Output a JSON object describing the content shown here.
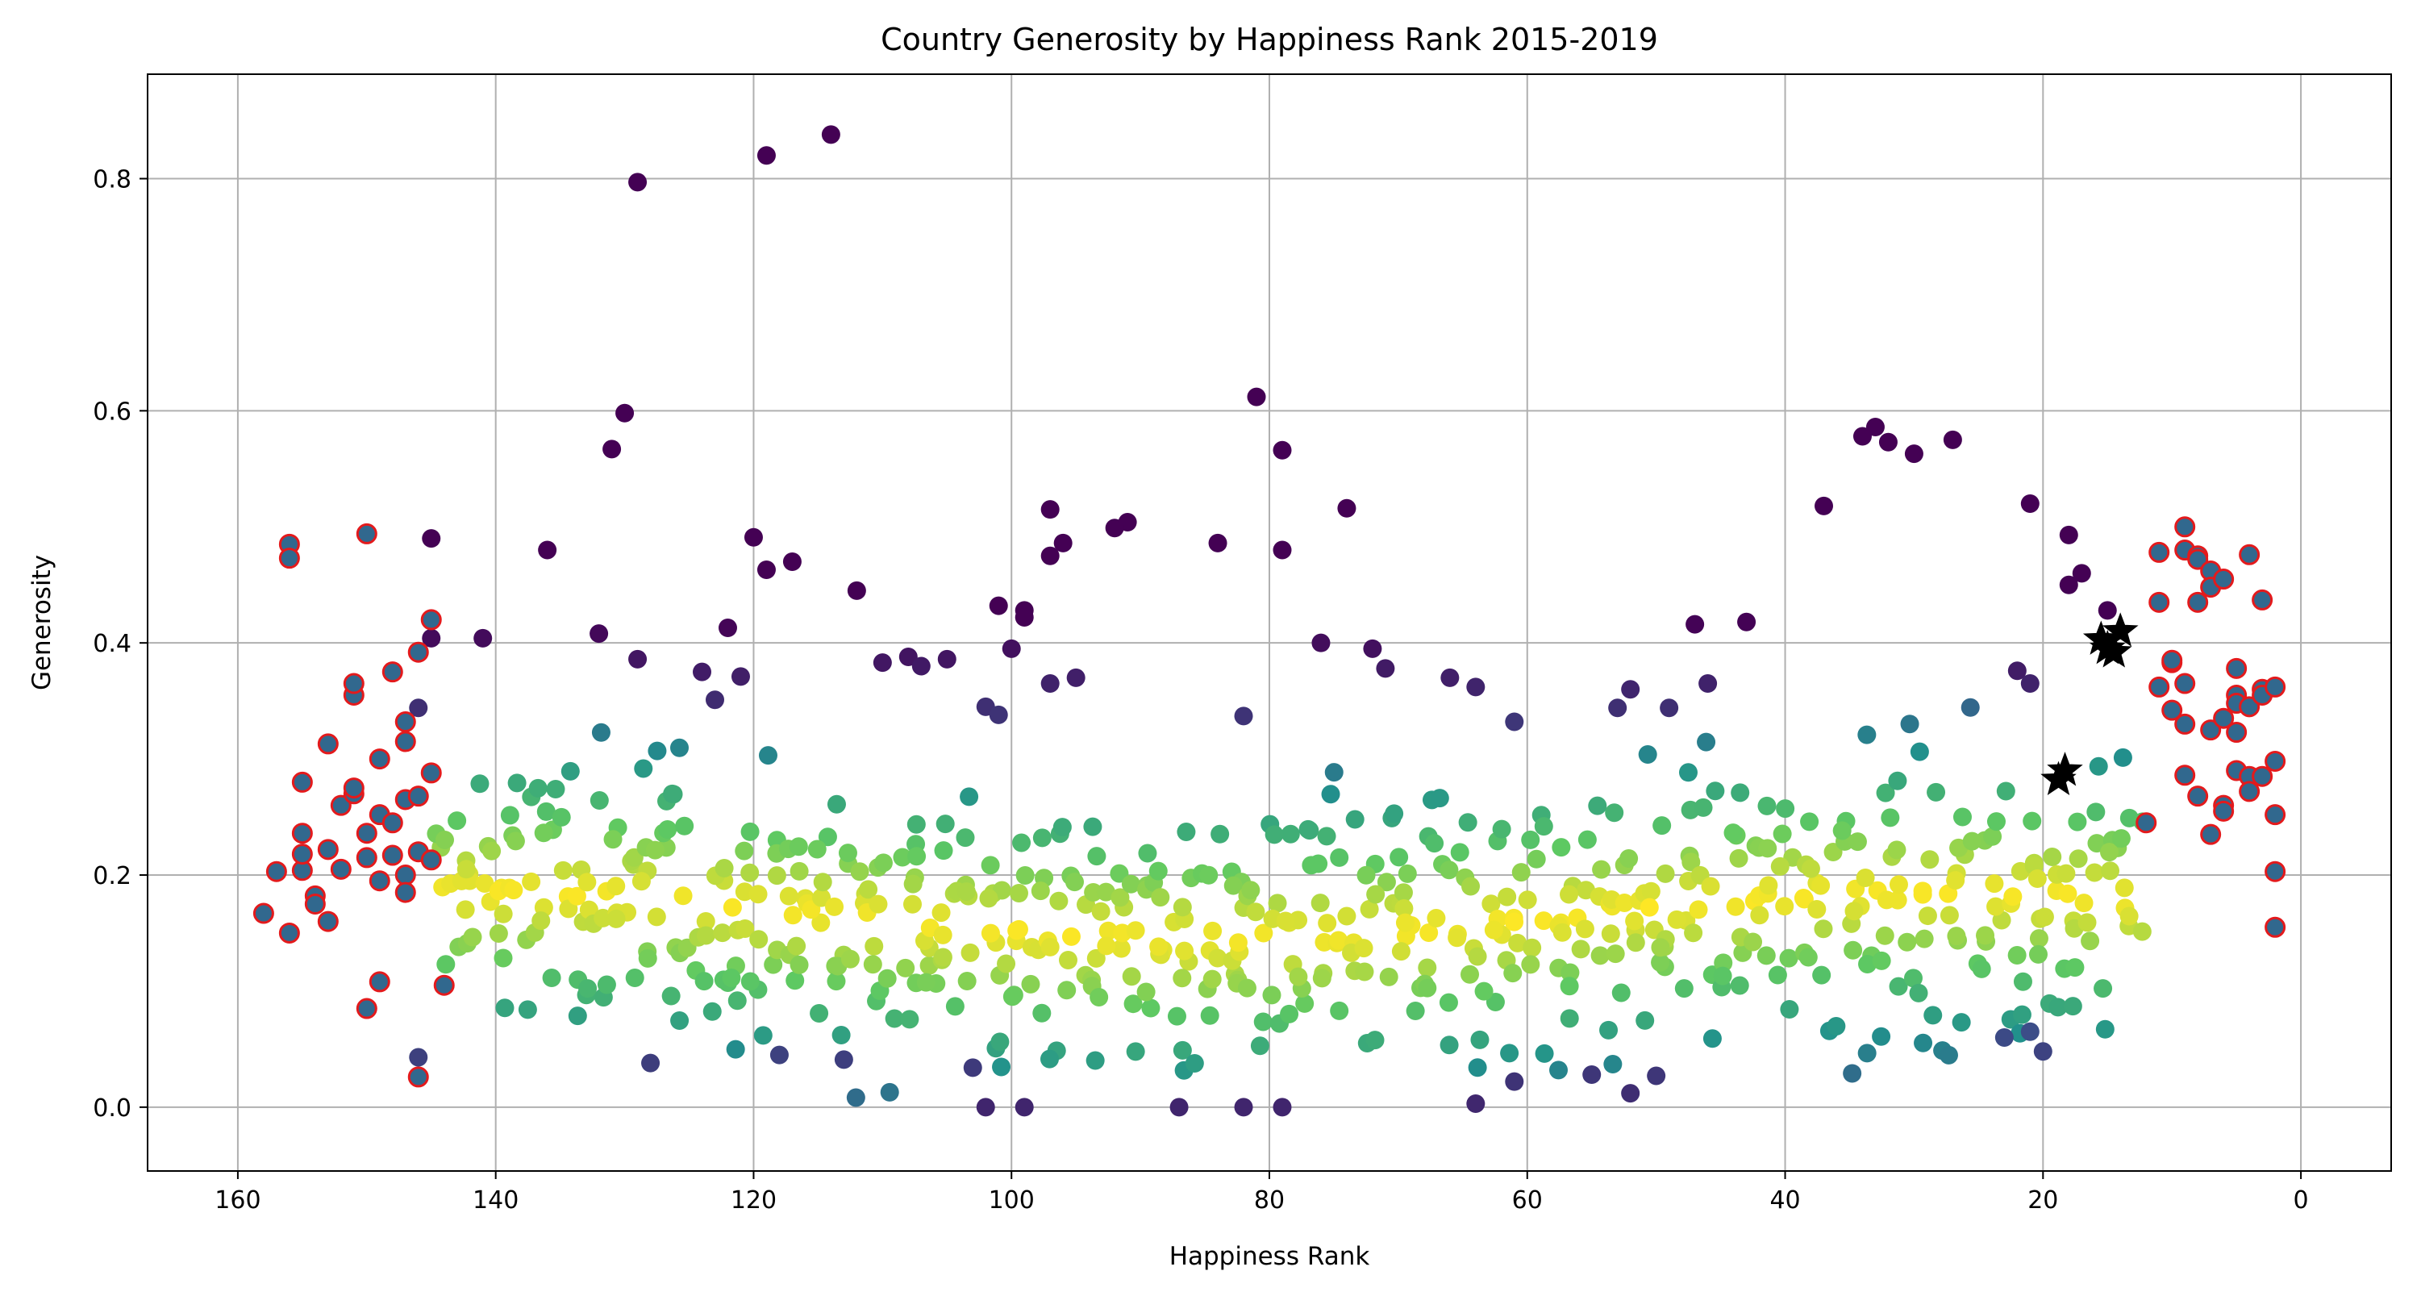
{
  "chart_data": {
    "type": "scatter",
    "title": "Country Generosity by Happiness Rank 2015-2019",
    "xlabel": "Happiness Rank",
    "ylabel": "Generosity",
    "xlim": [
      167,
      -7
    ],
    "ylim": [
      -0.055,
      0.89
    ],
    "x_inverted": true,
    "grid": true,
    "xticks": [
      {
        "value": 160,
        "label": "160"
      },
      {
        "value": 140,
        "label": "140"
      },
      {
        "value": 120,
        "label": "120"
      },
      {
        "value": 100,
        "label": "100"
      },
      {
        "value": 80,
        "label": "80"
      },
      {
        "value": 60,
        "label": "60"
      },
      {
        "value": 40,
        "label": "40"
      },
      {
        "value": 20,
        "label": "20"
      },
      {
        "value": 0,
        "label": "0"
      }
    ],
    "yticks": [
      {
        "value": 0.0,
        "label": "0.0"
      },
      {
        "value": 0.2,
        "label": "0.2"
      },
      {
        "value": 0.4,
        "label": "0.4"
      },
      {
        "value": 0.6,
        "label": "0.6"
      },
      {
        "value": 0.8,
        "label": "0.8"
      }
    ],
    "colors": {
      "colormap": [
        "#440154",
        "#3b528b",
        "#21918c",
        "#5ec962",
        "#fde725"
      ],
      "highlight_edge": "#e31a1c",
      "star_fill": "#000000",
      "grid": "#b0b0b0"
    },
    "highlighted_edge_points": [
      [
        158,
        0.167
      ],
      [
        157,
        0.203
      ],
      [
        156,
        0.485
      ],
      [
        156,
        0.473
      ],
      [
        156,
        0.15
      ],
      [
        155,
        0.204
      ],
      [
        155,
        0.236
      ],
      [
        155,
        0.28
      ],
      [
        155,
        0.218
      ],
      [
        154,
        0.182
      ],
      [
        154,
        0.175
      ],
      [
        153,
        0.222
      ],
      [
        153,
        0.313
      ],
      [
        153,
        0.16
      ],
      [
        152,
        0.205
      ],
      [
        152,
        0.26
      ],
      [
        151,
        0.27
      ],
      [
        151,
        0.275
      ],
      [
        151,
        0.355
      ],
      [
        151,
        0.365
      ],
      [
        150,
        0.215
      ],
      [
        150,
        0.236
      ],
      [
        150,
        0.494
      ],
      [
        150,
        0.085
      ],
      [
        149,
        0.195
      ],
      [
        149,
        0.3
      ],
      [
        149,
        0.252
      ],
      [
        149,
        0.108
      ],
      [
        148,
        0.245
      ],
      [
        148,
        0.375
      ],
      [
        148,
        0.217
      ],
      [
        147,
        0.2
      ],
      [
        147,
        0.265
      ],
      [
        147,
        0.332
      ],
      [
        147,
        0.315
      ],
      [
        147,
        0.185
      ],
      [
        146,
        0.268
      ],
      [
        146,
        0.22
      ],
      [
        146,
        0.392
      ],
      [
        146,
        0.026
      ],
      [
        145,
        0.288
      ],
      [
        145,
        0.42
      ],
      [
        145,
        0.213
      ],
      [
        144,
        0.105
      ],
      [
        12,
        0.245
      ],
      [
        11,
        0.478
      ],
      [
        11,
        0.435
      ],
      [
        11,
        0.362
      ],
      [
        10,
        0.383
      ],
      [
        10,
        0.385
      ],
      [
        10,
        0.342
      ],
      [
        9,
        0.33
      ],
      [
        9,
        0.365
      ],
      [
        9,
        0.48
      ],
      [
        9,
        0.5
      ],
      [
        9,
        0.286
      ],
      [
        8,
        0.475
      ],
      [
        8,
        0.472
      ],
      [
        8,
        0.435
      ],
      [
        8,
        0.268
      ],
      [
        7,
        0.462
      ],
      [
        7,
        0.448
      ],
      [
        7,
        0.325
      ],
      [
        7,
        0.235
      ],
      [
        6,
        0.455
      ],
      [
        6,
        0.335
      ],
      [
        6,
        0.26
      ],
      [
        6,
        0.255
      ],
      [
        5,
        0.323
      ],
      [
        5,
        0.378
      ],
      [
        5,
        0.355
      ],
      [
        5,
        0.348
      ],
      [
        5,
        0.29
      ],
      [
        4,
        0.476
      ],
      [
        4,
        0.345
      ],
      [
        4,
        0.285
      ],
      [
        4,
        0.272
      ],
      [
        3,
        0.437
      ],
      [
        3,
        0.36
      ],
      [
        3,
        0.355
      ],
      [
        3,
        0.285
      ],
      [
        2,
        0.298
      ],
      [
        2,
        0.362
      ],
      [
        2,
        0.252
      ],
      [
        2,
        0.203
      ],
      [
        2,
        0.155
      ]
    ],
    "stars": [
      [
        15.5,
        0.403
      ],
      [
        15.0,
        0.395
      ],
      [
        14.5,
        0.392
      ],
      [
        14.0,
        0.41
      ],
      [
        18.8,
        0.282
      ],
      [
        18.3,
        0.29
      ]
    ]
  }
}
